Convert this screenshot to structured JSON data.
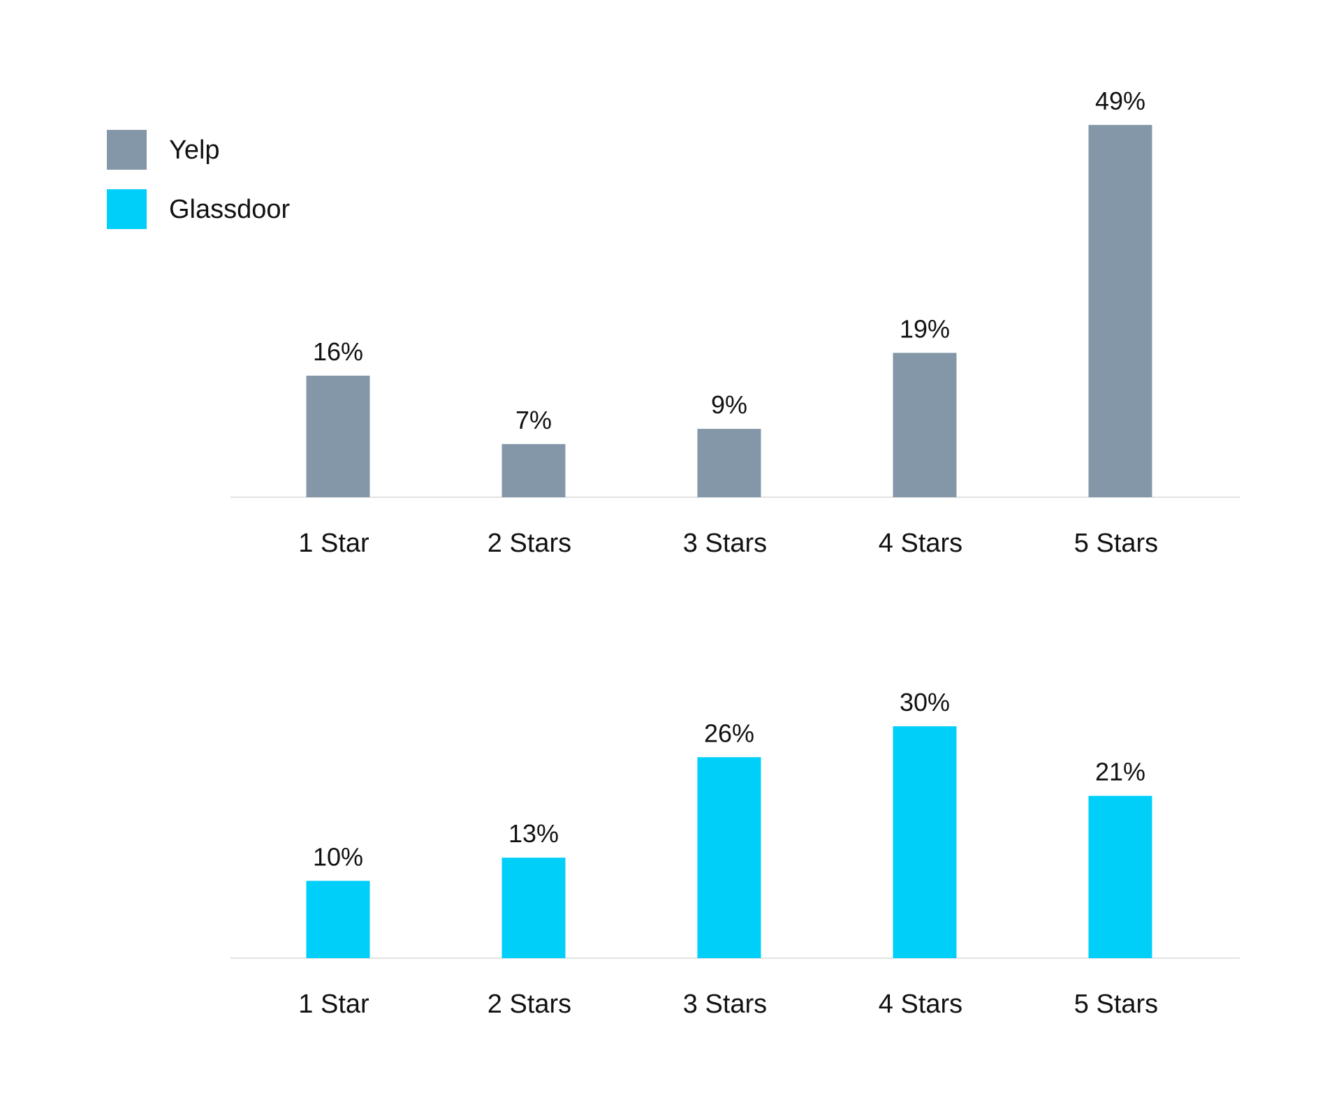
{
  "chart_data": [
    {
      "type": "bar",
      "categories": [
        "1 Star",
        "2 Stars",
        "3 Stars",
        "4 Stars",
        "5 Stars"
      ],
      "series": [
        {
          "name": "Yelp",
          "color": "#8497a8",
          "values": [
            16,
            7,
            9,
            19,
            49
          ],
          "value_labels": [
            "16%",
            "7%",
            "9%",
            "19%",
            "49%"
          ]
        }
      ],
      "ylim": [
        0,
        50
      ],
      "grid": false,
      "unit": "%"
    },
    {
      "type": "bar",
      "categories": [
        "1 Star",
        "2 Stars",
        "3 Stars",
        "4 Stars",
        "5 Stars"
      ],
      "series": [
        {
          "name": "Glassdoor",
          "color": "#00cffa",
          "values": [
            10,
            13,
            26,
            30,
            21
          ],
          "value_labels": [
            "10%",
            "13%",
            "26%",
            "30%",
            "21%"
          ]
        }
      ],
      "ylim": [
        0,
        30
      ],
      "grid": false,
      "unit": "%"
    }
  ],
  "legend": {
    "position": "top-left",
    "items": [
      {
        "label": "Yelp",
        "color": "#8497a8"
      },
      {
        "label": "Glassdoor",
        "color": "#00cffa"
      }
    ]
  },
  "baseline_color": "#d9d9d9"
}
